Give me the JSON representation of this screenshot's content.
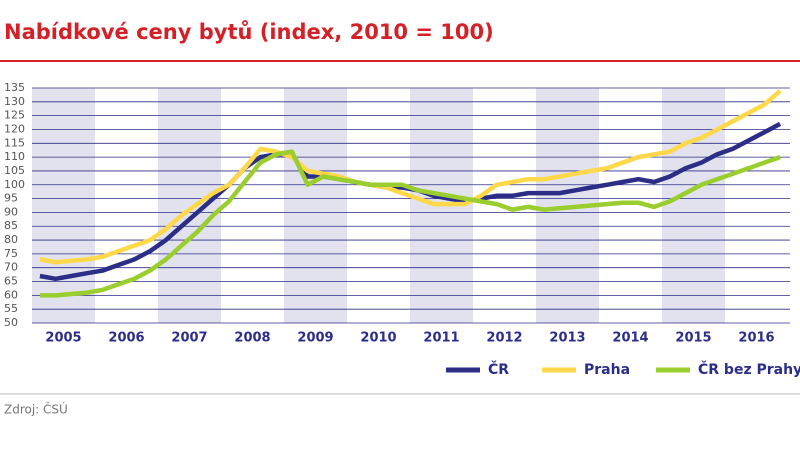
{
  "chart_data": {
    "type": "line",
    "title": "Nabídkové ceny bytů (index, 2010 = 100)",
    "source": "Zdroj: ČSÚ",
    "categories": [
      null,
      "2005",
      null,
      null,
      null,
      "2006",
      null,
      null,
      null,
      "2007",
      null,
      null,
      null,
      "2008",
      null,
      null,
      null,
      "2009",
      null,
      null,
      null,
      "2010",
      null,
      null,
      null,
      "2011",
      null,
      null,
      null,
      "2012",
      null,
      null,
      null,
      "2013",
      null,
      null,
      null,
      "2014",
      null,
      null,
      null,
      "2015",
      null,
      null,
      null,
      "2016",
      null,
      null
    ],
    "ylim": [
      50,
      135
    ],
    "yticks": [
      50,
      55,
      60,
      65,
      70,
      75,
      80,
      85,
      90,
      95,
      100,
      105,
      110,
      115,
      120,
      125,
      130,
      135
    ],
    "grid": true,
    "legend": "bottom-right",
    "series": [
      {
        "name": "ČR",
        "color": "#2b2d87",
        "values": [
          67,
          66,
          67,
          68,
          69,
          71,
          73,
          76,
          80,
          85,
          90,
          95,
          100,
          106,
          110,
          111,
          111,
          103,
          103,
          102,
          101,
          100,
          99,
          99,
          98,
          96,
          95,
          94,
          95,
          96,
          96,
          97,
          97,
          97,
          98,
          99,
          100,
          101,
          102,
          101,
          103,
          106,
          108,
          111,
          113,
          116,
          119,
          122
        ]
      },
      {
        "name": "Praha",
        "color": "#ffd84a",
        "values": [
          73,
          72,
          72.5,
          73,
          74,
          76,
          78,
          80,
          84,
          89,
          93,
          97,
          100,
          106,
          113,
          112,
          110,
          105,
          104,
          103,
          101,
          100,
          99,
          97,
          95,
          93,
          93,
          93,
          96,
          100,
          101,
          102,
          102,
          103,
          104,
          105,
          106,
          108,
          110,
          111,
          112,
          115,
          117,
          120,
          123,
          126,
          129,
          134
        ]
      },
      {
        "name": "ČR bez Prahy",
        "color": "#9acd2e",
        "values": [
          60,
          60,
          60.5,
          61,
          62,
          64,
          66,
          69,
          73,
          78,
          83,
          89,
          94,
          101,
          108,
          111,
          112,
          100,
          103,
          102,
          101,
          100,
          100,
          100,
          98,
          97,
          96,
          95,
          94,
          93,
          91,
          92,
          91,
          91.5,
          92,
          92.5,
          93,
          93.5,
          93.5,
          92,
          94,
          97,
          100,
          102,
          104,
          106,
          108,
          110
        ]
      }
    ]
  }
}
